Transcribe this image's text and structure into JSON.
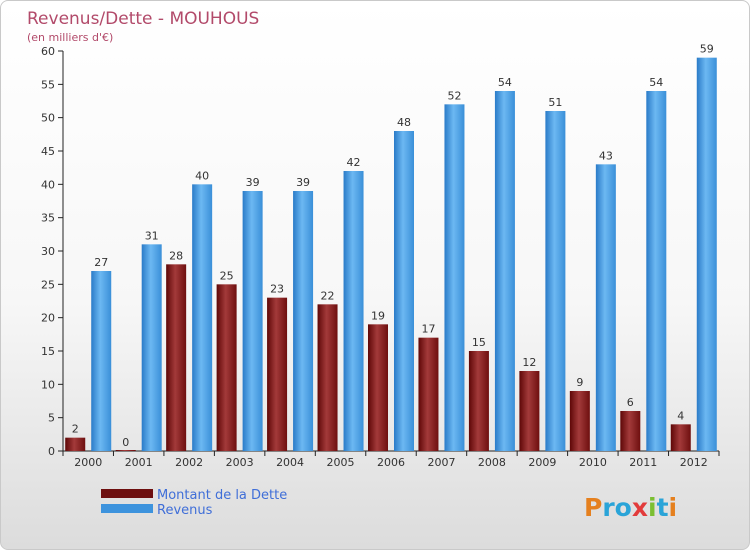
{
  "chart_data": {
    "type": "bar",
    "title": "Revenus/Dette - MOUHOUS",
    "subtitle": "(en milliers d'€)",
    "categories": [
      "2000",
      "2001",
      "2002",
      "2003",
      "2004",
      "2005",
      "2006",
      "2007",
      "2008",
      "2009",
      "2010",
      "2011",
      "2012"
    ],
    "series": [
      {
        "name": "Montant de la Dette",
        "color": "#7a1313",
        "values": [
          2,
          0,
          28,
          25,
          23,
          22,
          19,
          17,
          15,
          12,
          9,
          6,
          4
        ]
      },
      {
        "name": "Revenus",
        "color": "#3d93dd",
        "values": [
          27,
          31,
          40,
          39,
          39,
          42,
          48,
          52,
          54,
          51,
          43,
          54,
          59
        ]
      }
    ],
    "ylim": [
      0,
      60
    ],
    "yticks": [
      0,
      5,
      10,
      15,
      20,
      25,
      30,
      35,
      40,
      45,
      50,
      55,
      60
    ],
    "grid": false,
    "legend": "bottom-left"
  },
  "logo": {
    "text": "Proxiti",
    "letters": [
      "P",
      "r",
      "o",
      "x",
      "i",
      "t",
      "i"
    ]
  }
}
